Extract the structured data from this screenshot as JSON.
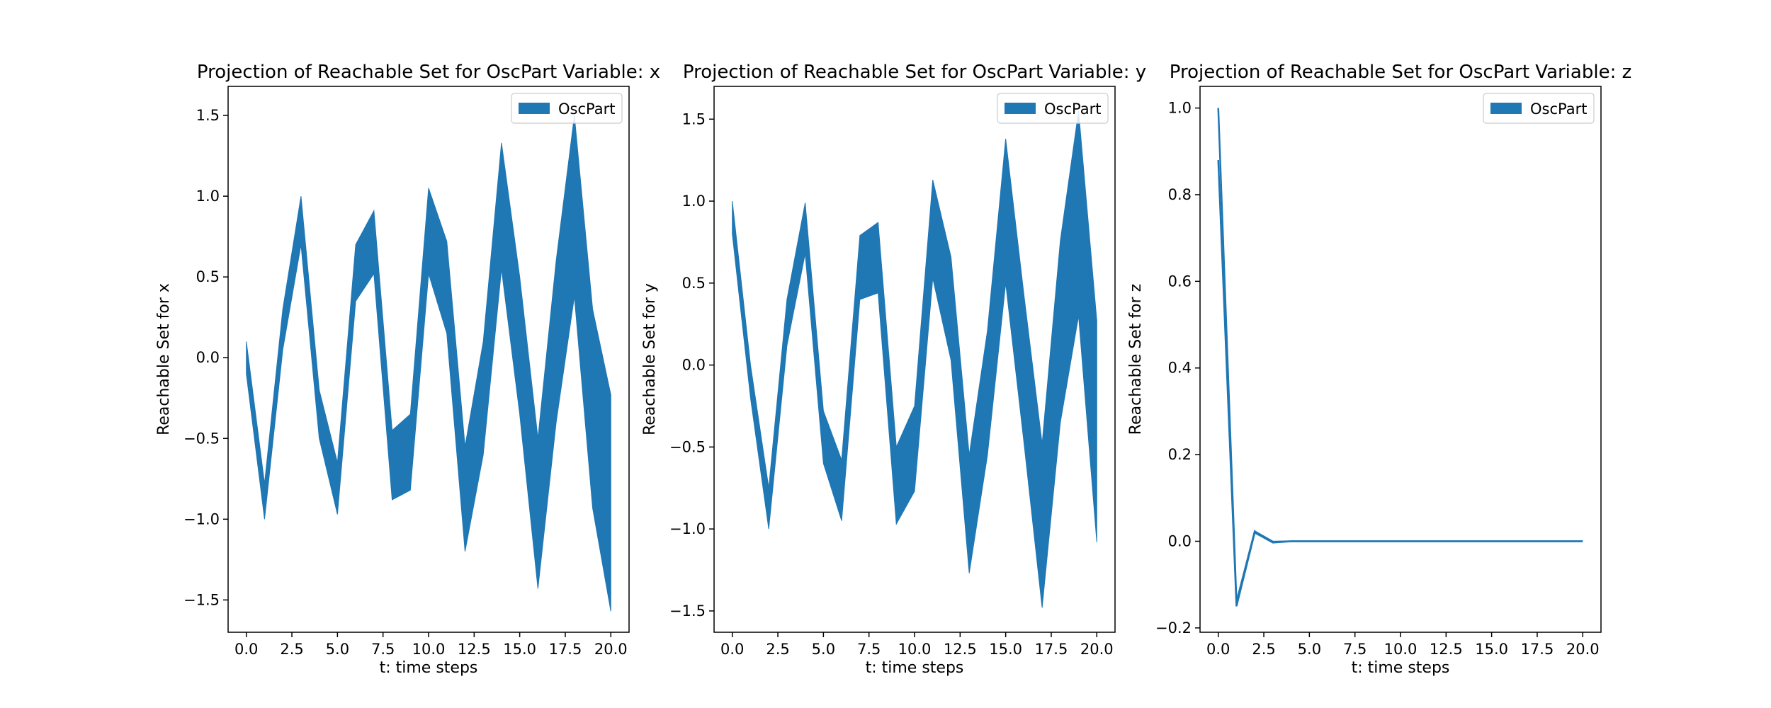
{
  "chart_data": [
    {
      "type": "area",
      "title": "Projection of Reachable Set for OscPart Variable: x",
      "xlabel": "t: time steps",
      "ylabel": "Reachable Set for x",
      "xlim": [
        -1,
        21
      ],
      "ylim": [
        -1.7,
        1.68
      ],
      "xticks": [
        0,
        2.5,
        5,
        7.5,
        10,
        12.5,
        15,
        17.5,
        20
      ],
      "xtick_labels": [
        "0.0",
        "2.5",
        "5.0",
        "7.5",
        "10.0",
        "12.5",
        "15.0",
        "17.5",
        "20.0"
      ],
      "yticks": [
        -1.5,
        -1.0,
        -0.5,
        0.0,
        0.5,
        1.0,
        1.5
      ],
      "ytick_labels": [
        "−1.5",
        "−1.0",
        "−0.5",
        "0.0",
        "0.5",
        "1.0",
        "1.5"
      ],
      "grid": false,
      "legend_position": "top-right",
      "x": [
        0,
        1,
        2,
        3,
        4,
        5,
        6,
        7,
        8,
        9,
        10,
        11,
        12,
        13,
        14,
        15,
        16,
        17,
        18,
        19,
        20
      ],
      "series": [
        {
          "name": "OscPart",
          "color": "#1f77b4",
          "lower": [
            -0.1,
            -1.0,
            0.05,
            0.7,
            -0.5,
            -0.97,
            0.35,
            0.52,
            -0.88,
            -0.82,
            0.52,
            0.15,
            -1.2,
            -0.6,
            0.55,
            -0.35,
            -1.43,
            -0.4,
            0.38,
            -0.93,
            -1.57
          ],
          "upper": [
            0.1,
            -0.78,
            0.3,
            1.0,
            -0.2,
            -0.65,
            0.7,
            0.91,
            -0.45,
            -0.35,
            1.05,
            0.72,
            -0.55,
            0.1,
            1.33,
            0.5,
            -0.5,
            0.6,
            1.5,
            0.3,
            -0.23
          ]
        }
      ]
    },
    {
      "type": "area",
      "title": "Projection of Reachable Set for OscPart Variable: y",
      "xlabel": "t: time steps",
      "ylabel": "Reachable Set for y",
      "xlim": [
        -1,
        21
      ],
      "ylim": [
        -1.63,
        1.7
      ],
      "xticks": [
        0,
        2.5,
        5,
        7.5,
        10,
        12.5,
        15,
        17.5,
        20
      ],
      "xtick_labels": [
        "0.0",
        "2.5",
        "5.0",
        "7.5",
        "10.0",
        "12.5",
        "15.0",
        "17.5",
        "20.0"
      ],
      "yticks": [
        -1.5,
        -1.0,
        -0.5,
        0.0,
        0.5,
        1.0,
        1.5
      ],
      "ytick_labels": [
        "−1.5",
        "−1.0",
        "−0.5",
        "0.0",
        "0.5",
        "1.0",
        "1.5"
      ],
      "grid": false,
      "legend_position": "top-right",
      "x": [
        0,
        1,
        2,
        3,
        4,
        5,
        6,
        7,
        8,
        9,
        10,
        11,
        12,
        13,
        14,
        15,
        16,
        17,
        18,
        19,
        20
      ],
      "series": [
        {
          "name": "OscPart",
          "color": "#1f77b4",
          "lower": [
            0.8,
            -0.2,
            -1.0,
            0.12,
            0.68,
            -0.6,
            -0.95,
            0.4,
            0.44,
            -0.97,
            -0.77,
            0.53,
            0.03,
            -1.27,
            -0.55,
            0.5,
            -0.47,
            -1.48,
            -0.35,
            0.3,
            -1.08
          ],
          "upper": [
            1.0,
            0.0,
            -0.75,
            0.4,
            0.99,
            -0.28,
            -0.58,
            0.79,
            0.87,
            -0.5,
            -0.25,
            1.13,
            0.66,
            -0.55,
            0.21,
            1.38,
            0.43,
            -0.48,
            0.76,
            1.55,
            0.27
          ]
        }
      ]
    },
    {
      "type": "line",
      "title": "Projection of Reachable Set for OscPart Variable: z",
      "xlabel": "t: time steps",
      "ylabel": "Reachable Set for z",
      "xlim": [
        -1,
        21
      ],
      "ylim": [
        -0.21,
        1.05
      ],
      "xticks": [
        0,
        2.5,
        5,
        7.5,
        10,
        12.5,
        15,
        17.5,
        20
      ],
      "xtick_labels": [
        "0.0",
        "2.5",
        "5.0",
        "7.5",
        "10.0",
        "12.5",
        "15.0",
        "17.5",
        "20.0"
      ],
      "yticks": [
        -0.2,
        0.0,
        0.2,
        0.4,
        0.6,
        0.8,
        1.0
      ],
      "ytick_labels": [
        "−0.2",
        "0.0",
        "0.2",
        "0.4",
        "0.6",
        "0.8",
        "1.0"
      ],
      "grid": false,
      "legend_position": "top-right",
      "x": [
        0,
        1,
        2,
        3,
        4,
        5,
        6,
        7,
        8,
        9,
        10,
        11,
        12,
        13,
        14,
        15,
        16,
        17,
        18,
        19,
        20
      ],
      "series": [
        {
          "name": "OscPart",
          "color": "#1f77b4",
          "lower": [
            0.88,
            -0.15,
            0.02,
            -0.003,
            0.0,
            0.0,
            0.0,
            0.0,
            0.0,
            0.0,
            0.0,
            0.0,
            0.0,
            0.0,
            0.0,
            0.0,
            0.0,
            0.0,
            0.0,
            0.0,
            0.0
          ],
          "upper": [
            1.0,
            -0.14,
            0.023,
            -0.001,
            0.0,
            0.0,
            0.0,
            0.0,
            0.0,
            0.0,
            0.0,
            0.0,
            0.0,
            0.0,
            0.0,
            0.0,
            0.0,
            0.0,
            0.0,
            0.0,
            0.0
          ]
        }
      ]
    }
  ]
}
